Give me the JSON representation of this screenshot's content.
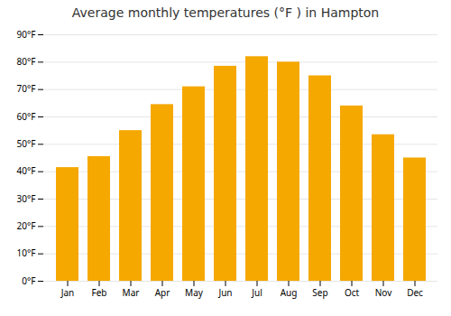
{
  "chart_data": {
    "type": "bar",
    "title": "Average monthly temperatures (°F ) in Hampton",
    "categories": [
      "Jan",
      "Feb",
      "Mar",
      "Apr",
      "May",
      "Jun",
      "Jul",
      "Aug",
      "Sep",
      "Oct",
      "Nov",
      "Dec"
    ],
    "values": [
      41.5,
      45.5,
      55.0,
      64.5,
      71.0,
      78.5,
      82.0,
      80.0,
      75.0,
      64.0,
      53.5,
      45.0
    ],
    "color": "#F5A800",
    "ylim": [
      0,
      90
    ],
    "yticks": [
      {
        "value": 0,
        "label": "0°F"
      },
      {
        "value": 10,
        "label": "10°F"
      },
      {
        "value": 20,
        "label": "20°F"
      },
      {
        "value": 30,
        "label": "30°F"
      },
      {
        "value": 40,
        "label": "40°F"
      },
      {
        "value": 50,
        "label": "50°F"
      },
      {
        "value": 60,
        "label": "60°F"
      },
      {
        "value": 70,
        "label": "70°F"
      },
      {
        "value": 80,
        "label": "80°F"
      },
      {
        "value": 90,
        "label": "90°F"
      }
    ],
    "grid": true
  }
}
